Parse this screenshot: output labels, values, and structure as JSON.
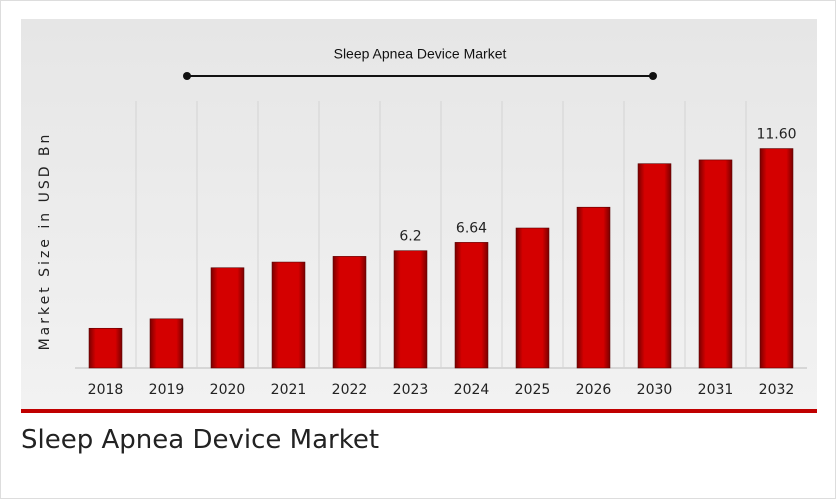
{
  "chart_data": {
    "type": "bar",
    "title": "Sleep Apnea Device Market",
    "ylabel": "Market Size in USD Bn",
    "categories": [
      "2018",
      "2019",
      "2020",
      "2021",
      "2022",
      "2023",
      "2024",
      "2025",
      "2026",
      "2030",
      "2031",
      "2032"
    ],
    "values": [
      2.1,
      2.6,
      5.3,
      5.6,
      5.9,
      6.2,
      6.64,
      7.4,
      8.5,
      10.8,
      11.0,
      11.6
    ],
    "value_labels": [
      null,
      null,
      null,
      null,
      null,
      "6.2",
      "6.64",
      null,
      null,
      null,
      null,
      "11.60"
    ],
    "color": "#cc0000",
    "ylim": [
      0,
      12
    ]
  },
  "caption": "Sleep Apnea Device Market"
}
